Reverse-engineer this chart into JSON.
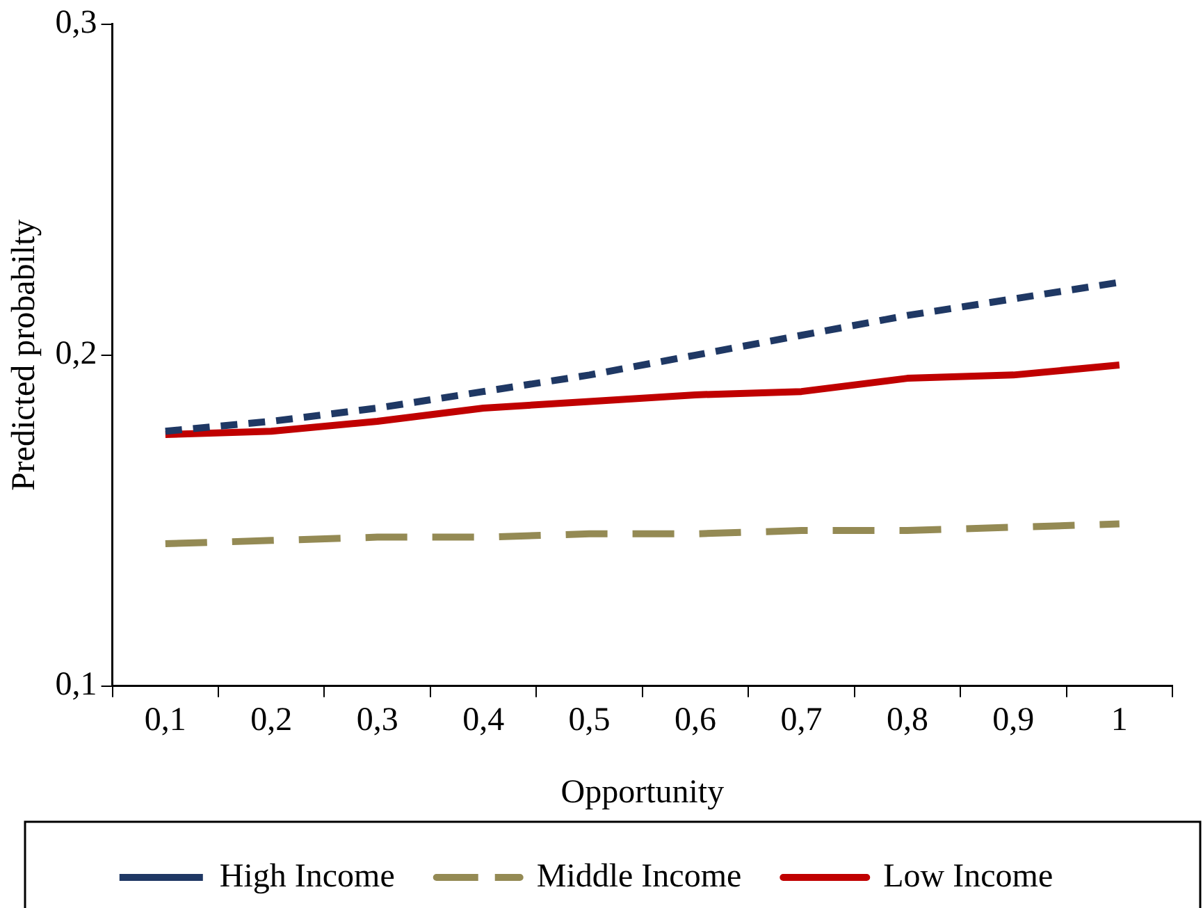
{
  "chart_data": {
    "type": "line",
    "xlabel": "Opportunity",
    "ylabel": "Predicted probabilty",
    "categories": [
      "0,1",
      "0,2",
      "0,3",
      "0,4",
      "0,5",
      "0,6",
      "0,7",
      "0,8",
      "0,9",
      "1"
    ],
    "series": [
      {
        "name": "High Income",
        "color": "#1f3864",
        "line_style": "dashed",
        "values": [
          0.177,
          0.18,
          0.184,
          0.189,
          0.194,
          0.2,
          0.206,
          0.212,
          0.217,
          0.222
        ]
      },
      {
        "name": "Middle Income",
        "color": "#948a54",
        "line_style": "dashed",
        "values": [
          0.143,
          0.144,
          0.145,
          0.145,
          0.146,
          0.146,
          0.147,
          0.147,
          0.148,
          0.149
        ]
      },
      {
        "name": "Low Income",
        "color": "#c00000",
        "line_style": "solid",
        "values": [
          0.176,
          0.177,
          0.18,
          0.184,
          0.186,
          0.188,
          0.189,
          0.193,
          0.194,
          0.197
        ]
      }
    ],
    "ylim": [
      0.1,
      0.3
    ],
    "yticks": [
      {
        "value": 0.1,
        "label": "0,1"
      },
      {
        "value": 0.2,
        "label": "0,2"
      },
      {
        "value": 0.3,
        "label": "0,3"
      }
    ],
    "grid": false,
    "legend": "bottom",
    "marker": "none"
  }
}
